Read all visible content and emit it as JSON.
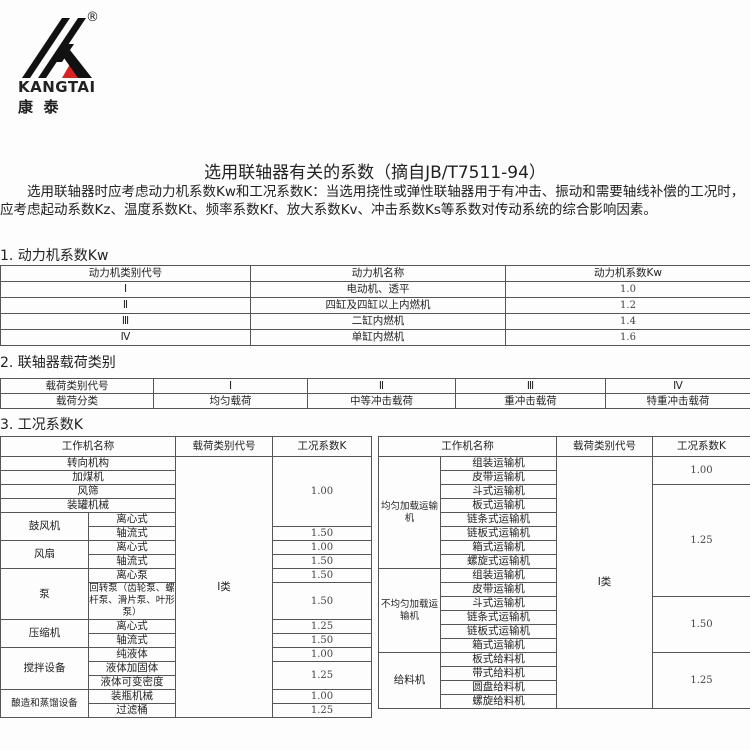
{
  "logo": {
    "brand": "KANGTAI",
    "chinese": "康  泰",
    "registered": "®",
    "accent": "#e02020"
  },
  "title": "选用联轴器有关的系数（摘自JB/T7511-94）",
  "intro": "　　选用联轴器时应考虑动力机系数Kw和工况系数K：当选用挠性或弹性联轴器用于有冲击、振动和需要轴线补偿的工况时，应考虑起动系数Kz、温度系数Kt、频率系数Kf、放大系数Kv、冲击系数Ks等系数对传动系统的综合影响因素。",
  "section1": "1. 动力机系数Kw",
  "section2": "2. 联轴器载荷类别",
  "section3": "3. 工况系数K",
  "table1": {
    "headers": [
      "动力机类别代号",
      "动力机名称",
      "动力机系数Kw"
    ],
    "rows": [
      [
        "Ⅰ",
        "电动机、透平",
        "1.0"
      ],
      [
        "Ⅱ",
        "四缸及四缸以上内燃机",
        "1.2"
      ],
      [
        "Ⅲ",
        "二缸内燃机",
        "1.4"
      ],
      [
        "Ⅳ",
        "单缸内燃机",
        "1.6"
      ]
    ]
  },
  "table2": {
    "rows": [
      [
        "载荷类别代号",
        "Ⅰ",
        "Ⅱ",
        "Ⅲ",
        "Ⅳ"
      ],
      [
        "载荷分类",
        "均匀载荷",
        "中等冲击载荷",
        "重冲击载荷",
        "特重冲击载荷"
      ]
    ]
  },
  "table3_left": {
    "headers": [
      "工作机名称",
      "载荷类别代号",
      "工况系数K"
    ],
    "rows": [
      [
        {
          "t": "转向机构",
          "cs": 2
        },
        {
          "t": "Ⅰ类",
          "rs": 18
        },
        {
          "t": "1.00",
          "rs": 5,
          "n": 1
        }
      ],
      [
        {
          "t": "加煤机",
          "cs": 2
        }
      ],
      [
        {
          "t": "风筛",
          "cs": 2
        }
      ],
      [
        {
          "t": "装罐机械",
          "cs": 2
        }
      ],
      [
        {
          "t": "鼓风机",
          "rs": 2
        },
        {
          "t": "离心式"
        }
      ],
      [
        {
          "t": "轴流式"
        },
        {
          "t": "1.50",
          "n": 1
        }
      ],
      [
        {
          "t": "风扇",
          "rs": 2
        },
        {
          "t": "离心式"
        },
        {
          "t": "1.00",
          "n": 1
        }
      ],
      [
        {
          "t": "轴流式"
        },
        {
          "t": "1.50",
          "n": 1
        }
      ],
      [
        {
          "t": "泵",
          "rs": 3
        },
        {
          "t": "离心泵"
        },
        {
          "t": "1.50",
          "n": 1
        }
      ],
      [
        {
          "t": "回转泵（齿轮泵、螺杆泵、滑片泵、叶形泵）",
          "rs": 2,
          "w": 1
        },
        {
          "t": "1.50",
          "rs": 2,
          "n": 1
        }
      ],
      [],
      [
        {
          "t": "压缩机",
          "rs": 2
        },
        {
          "t": "离心式"
        },
        {
          "t": "1.25",
          "n": 1
        }
      ],
      [
        {
          "t": "轴流式"
        },
        {
          "t": "1.50",
          "n": 1
        }
      ],
      [
        {
          "t": "搅拌设备",
          "rs": 3
        },
        {
          "t": "纯液体"
        },
        {
          "t": "1.00",
          "n": 1
        }
      ],
      [
        {
          "t": "液体加固体"
        },
        {
          "t": "1.25",
          "rs": 2,
          "n": 1
        }
      ],
      [
        {
          "t": "液体可变密度"
        }
      ],
      [
        {
          "t": "酿造和蒸馏设备",
          "rs": 2,
          "w": 1
        },
        {
          "t": "装瓶机械"
        },
        {
          "t": "1.00",
          "n": 1
        }
      ],
      [
        {
          "t": "过滤桶"
        },
        {
          "t": "1.25",
          "n": 1
        }
      ]
    ]
  },
  "table3_right": {
    "headers": [
      "工作机名称",
      "载荷类别代号",
      "工况系数K"
    ],
    "rows": [
      [
        {
          "t": "均匀加载运输机",
          "rs": 8,
          "w": 1
        },
        {
          "t": "组装运输机"
        },
        {
          "t": "Ⅰ类",
          "rs": 18
        },
        {
          "t": "1.00",
          "rs": 2,
          "n": 1
        }
      ],
      [
        {
          "t": "皮带运输机"
        }
      ],
      [
        {
          "t": "斗式运输机"
        },
        {
          "t": "1.25",
          "rs": 8,
          "n": 1
        }
      ],
      [
        {
          "t": "板式运输机"
        }
      ],
      [
        {
          "t": "链条式运输机"
        }
      ],
      [
        {
          "t": "链板式运输机"
        }
      ],
      [
        {
          "t": "箱式运输机"
        }
      ],
      [
        {
          "t": "螺旋式运输机"
        }
      ],
      [
        {
          "t": "不均匀加载运输机",
          "rs": 6,
          "w": 1
        },
        {
          "t": "组装运输机"
        }
      ],
      [
        {
          "t": "皮带运输机"
        }
      ],
      [
        {
          "t": "斗式运输机"
        },
        {
          "t": "1.50",
          "rs": 4,
          "n": 1
        }
      ],
      [
        {
          "t": "链条式运输机"
        }
      ],
      [
        {
          "t": "链板式运输机"
        }
      ],
      [
        {
          "t": "箱式运输机"
        }
      ],
      [
        {
          "t": "给料机",
          "rs": 4
        },
        {
          "t": "板式给料机"
        },
        {
          "t": "1.25",
          "rs": 4,
          "n": 1
        }
      ],
      [
        {
          "t": "带式给料机"
        }
      ],
      [
        {
          "t": "圆盘给料机"
        }
      ],
      [
        {
          "t": "螺旋给料机"
        }
      ]
    ]
  }
}
